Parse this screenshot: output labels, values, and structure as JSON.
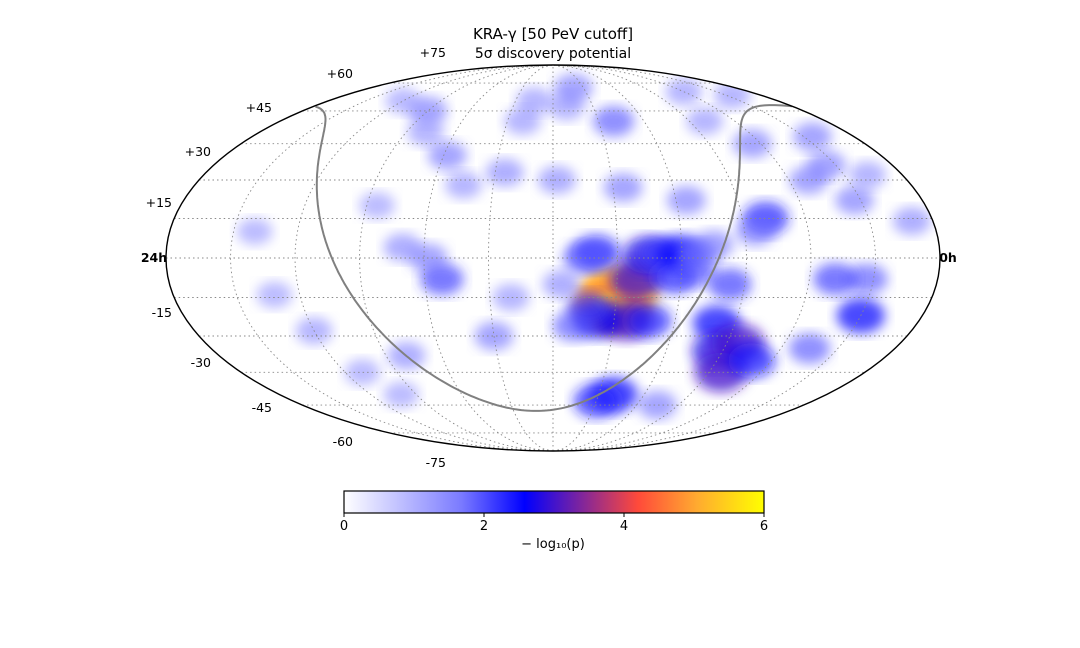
{
  "chart_data": {
    "type": "heatmap",
    "projection": "mollweide",
    "title": "KRA-γ [50 PeV cutoff]",
    "subtitle": "5σ discovery potential",
    "ra_labels": {
      "left": "24h",
      "right": "0h"
    },
    "dec_labels": {
      "north": [
        "+15",
        "+30",
        "+45",
        "+60",
        "+75"
      ],
      "south": [
        "-15",
        "-30",
        "-45",
        "-60",
        "-75"
      ]
    },
    "dec_values": {
      "north": [
        15,
        30,
        45,
        60,
        75
      ],
      "south": [
        -15,
        -30,
        -45,
        -60,
        -75
      ]
    },
    "grid": true,
    "colorbar": {
      "label": "− log₁₀(p)",
      "min": 0,
      "max": 6,
      "ticks": [
        "0",
        "2",
        "4",
        "6"
      ],
      "colors": [
        "#ffffff",
        "#7a7aff",
        "#0000ff",
        "#ff4a3a",
        "#ffaa30",
        "#ffff00"
      ],
      "stops": [
        0,
        0.28,
        0.43,
        0.7,
        0.84,
        1.0
      ]
    },
    "galactic_plane": {
      "color": "#808080"
    },
    "hotspots": [
      {
        "ra": 149,
        "dec": -14,
        "value": 5.2
      },
      {
        "ra": 152,
        "dec": -18,
        "value": 4.8
      },
      {
        "ra": 141,
        "dec": -8,
        "value": 3.0
      },
      {
        "ra": 136,
        "dec": 1,
        "value": 2.8
      },
      {
        "ra": 130,
        "dec": 2,
        "value": 2.2
      },
      {
        "ra": 123,
        "dec": -7,
        "value": 2.4
      },
      {
        "ra": 144,
        "dec": -24,
        "value": 3.0
      },
      {
        "ra": 133,
        "dec": -24,
        "value": 2.4
      },
      {
        "ra": 160,
        "dec": 2,
        "value": 2.5
      },
      {
        "ra": 158,
        "dec": -24,
        "value": 2.6
      },
      {
        "ra": 163,
        "dec": -19,
        "value": 2.2
      },
      {
        "ra": 166,
        "dec": 0,
        "value": 2.0
      },
      {
        "ra": 120,
        "dec": 2,
        "value": 2.6
      },
      {
        "ra": 114,
        "dec": -5,
        "value": 2.0
      },
      {
        "ra": 112,
        "dec": 1,
        "value": 1.8
      },
      {
        "ra": 99,
        "dec": -25,
        "value": 2.6
      },
      {
        "ra": 93,
        "dec": -36,
        "value": 2.8
      },
      {
        "ra": 84,
        "dec": -33,
        "value": 3.0
      },
      {
        "ra": 83,
        "dec": -45,
        "value": 3.0
      },
      {
        "ra": 71,
        "dec": -40,
        "value": 2.5
      },
      {
        "ra": 45,
        "dec": -35,
        "value": 2.0
      },
      {
        "ra": 30,
        "dec": -22,
        "value": 2.6
      },
      {
        "ra": 33,
        "dec": -8,
        "value": 2.0
      },
      {
        "ra": 48,
        "dec": -8,
        "value": 2.2
      },
      {
        "ra": 33,
        "dec": 22,
        "value": 1.8
      },
      {
        "ra": 79,
        "dec": 15,
        "value": 2.4
      },
      {
        "ra": 85,
        "dec": 10,
        "value": 1.8
      },
      {
        "ra": 105,
        "dec": 5,
        "value": 1.8
      },
      {
        "ra": 115,
        "dec": 22,
        "value": 1.8
      },
      {
        "ra": 97,
        "dec": -10,
        "value": 2.2
      },
      {
        "ra": 140,
        "dec": -55,
        "value": 2.6
      },
      {
        "ra": 150,
        "dec": -58,
        "value": 2.4
      },
      {
        "ra": 105,
        "dec": -60,
        "value": 1.8
      },
      {
        "ra": 65,
        "dec": 45,
        "value": 1.8
      },
      {
        "ra": 50,
        "dec": 30,
        "value": 1.8
      },
      {
        "ra": 35,
        "dec": 36,
        "value": 1.8
      },
      {
        "ra": 145,
        "dec": 27,
        "value": 1.8
      },
      {
        "ra": 170,
        "dec": -26,
        "value": 2.0
      },
      {
        "ra": 176,
        "dec": -10,
        "value": 1.7
      },
      {
        "ra": 178,
        "dec": 30,
        "value": 1.7
      },
      {
        "ra": 10,
        "dec": 14,
        "value": 1.7
      },
      {
        "ra": 18,
        "dec": 32,
        "value": 1.6
      },
      {
        "ra": 25,
        "dec": 48,
        "value": 1.8
      },
      {
        "ra": 80,
        "dec": 55,
        "value": 1.6
      },
      {
        "ra": 140,
        "dec": 55,
        "value": 2.0
      },
      {
        "ra": 170,
        "dec": 62,
        "value": 1.6
      },
      {
        "ra": 160,
        "dec": 72,
        "value": 1.8
      },
      {
        "ra": 60,
        "dec": 70,
        "value": 1.6
      },
      {
        "ra": 25,
        "dec": 68,
        "value": 1.6
      },
      {
        "ra": 205,
        "dec": 33,
        "value": 1.7
      },
      {
        "ra": 225,
        "dec": 28,
        "value": 1.6
      },
      {
        "ra": 200,
        "dec": 55,
        "value": 1.6
      },
      {
        "ra": 232,
        "dec": -8,
        "value": 2.2
      },
      {
        "ra": 238,
        "dec": 0,
        "value": 1.8
      },
      {
        "ra": 210,
        "dec": -30,
        "value": 1.8
      },
      {
        "ra": 200,
        "dec": -15,
        "value": 1.6
      },
      {
        "ra": 238,
        "dec": 40,
        "value": 1.8
      },
      {
        "ra": 195,
        "dec": 65,
        "value": 1.6
      },
      {
        "ra": 250,
        "dec": 4,
        "value": 1.7
      },
      {
        "ra": 259,
        "dec": -38,
        "value": 1.7
      },
      {
        "ra": 300,
        "dec": -28,
        "value": 1.6
      },
      {
        "ra": 290,
        "dec": -45,
        "value": 1.5
      },
      {
        "ra": 280,
        "dec": -55,
        "value": 1.5
      },
      {
        "ra": 312,
        "dec": -14,
        "value": 1.5
      },
      {
        "ra": 270,
        "dec": 60,
        "value": 1.8
      },
      {
        "ra": 258,
        "dec": 50,
        "value": 1.6
      },
      {
        "ra": 320,
        "dec": 10,
        "value": 1.5
      },
      {
        "ra": 265,
        "dec": 20,
        "value": 1.5
      },
      {
        "ra": 300,
        "dec": 65,
        "value": 1.5
      }
    ]
  }
}
